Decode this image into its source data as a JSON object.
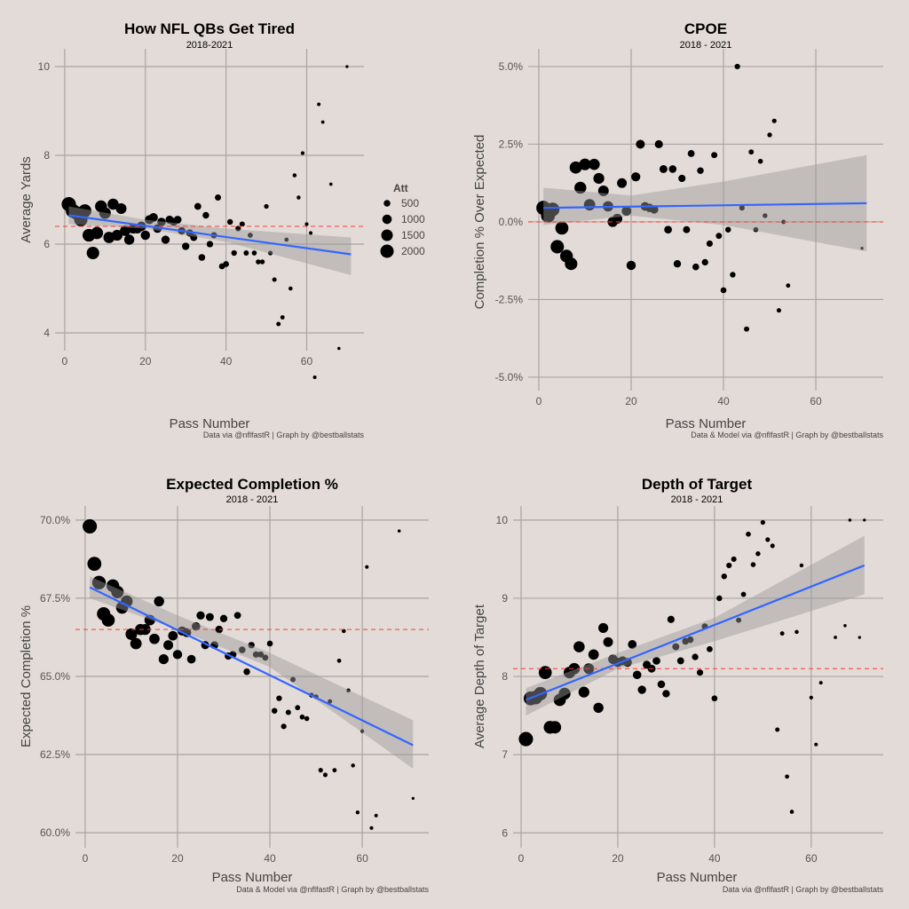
{
  "colors": {
    "background": "#e3dbd7",
    "points": "#000000",
    "trend": "#3366ff",
    "ribbon": "#999999",
    "reference": "#ff3b2f",
    "grid": "#aaa4a2"
  },
  "att_by_pass": [
    2300,
    2199,
    2101,
    2008,
    1919,
    1834,
    1753,
    1675,
    1601,
    1530,
    1462,
    1397,
    1335,
    1276,
    1220,
    1166,
    1114,
    1065,
    1017,
    972,
    929,
    888,
    849,
    811,
    775,
    741,
    708,
    677,
    647,
    618,
    591,
    564,
    539,
    515,
    493,
    471,
    450,
    430,
    411,
    393,
    375,
    359,
    343,
    328,
    313,
    299,
    286,
    273,
    261,
    250,
    239,
    228,
    218,
    208,
    199,
    190,
    182,
    174,
    166,
    159,
    152,
    145,
    139,
    133,
    127,
    121,
    116,
    111,
    106,
    101,
    97
  ],
  "legend": {
    "title": "Att",
    "items": [
      {
        "label": "500",
        "value": 500
      },
      {
        "label": "1000",
        "value": 1000
      },
      {
        "label": "1500",
        "value": 1500
      },
      {
        "label": "2000",
        "value": 2000
      }
    ]
  },
  "chart_data": [
    {
      "type": "scatter",
      "title": "How NFL QBs Get Tired",
      "subtitle": "2018-2021",
      "xlabel": "Pass Number",
      "ylabel": "Average Yards",
      "caption": "Data via @nflfastR | Graph by @bestballstats",
      "xlim": [
        -2.4,
        74.2
      ],
      "ylim": [
        3.6,
        10.4
      ],
      "xticks": [
        {
          "v": 0,
          "label": "0"
        },
        {
          "v": 20,
          "label": "20"
        },
        {
          "v": 40,
          "label": "40"
        },
        {
          "v": 60,
          "label": "60"
        }
      ],
      "yticks": [
        {
          "v": 4,
          "label": "4"
        },
        {
          "v": 6,
          "label": "6"
        },
        {
          "v": 8,
          "label": "8"
        },
        {
          "v": 10,
          "label": "10"
        }
      ],
      "reference_y": 6.4,
      "trend": [
        [
          1,
          6.65
        ],
        [
          71,
          5.77
        ]
      ],
      "ribbon": {
        "x": [
          1,
          20,
          40,
          71
        ],
        "lower": [
          6.45,
          6.35,
          6.05,
          5.3
        ],
        "upper": [
          6.85,
          6.55,
          6.35,
          6.15
        ]
      },
      "points": [
        [
          1,
          6.9
        ],
        [
          2,
          6.75
        ],
        [
          3,
          6.7
        ],
        [
          4,
          6.55
        ],
        [
          5,
          6.75
        ],
        [
          6,
          6.2
        ],
        [
          7,
          5.8
        ],
        [
          8,
          6.25
        ],
        [
          9,
          6.85
        ],
        [
          10,
          6.7
        ],
        [
          11,
          6.15
        ],
        [
          12,
          6.9
        ],
        [
          13,
          6.2
        ],
        [
          14,
          6.8
        ],
        [
          15,
          6.3
        ],
        [
          16,
          6.1
        ],
        [
          17,
          6.35
        ],
        [
          18,
          6.35
        ],
        [
          19,
          6.4
        ],
        [
          20,
          6.2
        ],
        [
          21,
          6.55
        ],
        [
          22,
          6.6
        ],
        [
          23,
          6.35
        ],
        [
          24,
          6.5
        ],
        [
          25,
          6.1
        ],
        [
          26,
          6.55
        ],
        [
          27,
          6.5
        ],
        [
          28,
          6.55
        ],
        [
          29,
          6.3
        ],
        [
          30,
          5.95
        ],
        [
          31,
          6.25
        ],
        [
          32,
          6.15
        ],
        [
          33,
          6.85
        ],
        [
          34,
          5.7
        ],
        [
          35,
          6.65
        ],
        [
          36,
          6.0
        ],
        [
          37,
          6.2
        ],
        [
          38,
          7.05
        ],
        [
          39,
          5.5
        ],
        [
          40,
          5.55
        ],
        [
          41,
          6.5
        ],
        [
          42,
          5.8
        ],
        [
          43,
          6.35
        ],
        [
          44,
          6.45
        ],
        [
          45,
          5.8
        ],
        [
          46,
          6.2
        ],
        [
          47,
          5.8
        ],
        [
          48,
          5.6
        ],
        [
          49,
          5.6
        ],
        [
          50,
          6.85
        ],
        [
          51,
          5.8
        ],
        [
          52,
          5.2
        ],
        [
          53,
          4.2
        ],
        [
          54,
          4.35
        ],
        [
          55,
          6.1
        ],
        [
          56,
          5.0
        ],
        [
          57,
          7.55
        ],
        [
          58,
          7.05
        ],
        [
          59,
          8.05
        ],
        [
          60,
          6.45
        ],
        [
          61,
          6.25
        ],
        [
          62,
          3.0
        ],
        [
          63,
          9.15
        ],
        [
          64,
          8.75
        ],
        [
          66,
          7.35
        ],
        [
          68,
          3.65
        ],
        [
          70,
          10.0
        ]
      ]
    },
    {
      "type": "scatter",
      "title": "CPOE",
      "subtitle": "2018 - 2021",
      "xlabel": "Pass Number",
      "ylabel": "Completion % Over Expected",
      "caption": "Data & Model via @nflfastR | Graph by @bestballstats",
      "xlim": [
        -2.3,
        74.6
      ],
      "ylim": [
        -5.43,
        5.57
      ],
      "xticks": [
        {
          "v": 0,
          "label": "0"
        },
        {
          "v": 20,
          "label": "20"
        },
        {
          "v": 40,
          "label": "40"
        },
        {
          "v": 60,
          "label": "60"
        }
      ],
      "yticks": [
        {
          "v": -5,
          "label": "-5.0%"
        },
        {
          "v": -2.5,
          "label": "-2.5%"
        },
        {
          "v": 0,
          "label": "0.0%"
        },
        {
          "v": 2.5,
          "label": "2.5%"
        },
        {
          "v": 5,
          "label": "5.0%"
        }
      ],
      "reference_y": 0,
      "trend": [
        [
          1,
          0.45
        ],
        [
          71,
          0.6
        ]
      ],
      "ribbon": {
        "x": [
          1,
          20,
          40,
          71
        ],
        "lower": [
          -0.1,
          0.2,
          -0.1,
          -0.95
        ],
        "upper": [
          1.1,
          0.85,
          1.3,
          2.15
        ]
      },
      "points": [
        [
          1,
          0.45
        ],
        [
          2,
          0.2
        ],
        [
          3,
          0.4
        ],
        [
          4,
          -0.8
        ],
        [
          5,
          -0.2
        ],
        [
          6,
          -1.1
        ],
        [
          7,
          -1.35
        ],
        [
          8,
          1.75
        ],
        [
          9,
          1.1
        ],
        [
          10,
          1.85
        ],
        [
          11,
          0.55
        ],
        [
          12,
          1.85
        ],
        [
          13,
          1.4
        ],
        [
          14,
          1.0
        ],
        [
          15,
          0.5
        ],
        [
          16,
          0.0
        ],
        [
          17,
          0.1
        ],
        [
          18,
          1.25
        ],
        [
          19,
          0.35
        ],
        [
          20,
          -1.4
        ],
        [
          21,
          1.45
        ],
        [
          22,
          2.5
        ],
        [
          23,
          0.5
        ],
        [
          24,
          0.45
        ],
        [
          25,
          0.4
        ],
        [
          26,
          2.5
        ],
        [
          27,
          1.7
        ],
        [
          28,
          -0.25
        ],
        [
          29,
          1.7
        ],
        [
          30,
          -1.35
        ],
        [
          31,
          1.4
        ],
        [
          32,
          -0.25
        ],
        [
          33,
          2.2
        ],
        [
          34,
          -1.45
        ],
        [
          35,
          1.65
        ],
        [
          36,
          -1.3
        ],
        [
          37,
          -0.7
        ],
        [
          38,
          2.15
        ],
        [
          39,
          -0.45
        ],
        [
          40,
          -2.2
        ],
        [
          41,
          -0.25
        ],
        [
          42,
          -1.7
        ],
        [
          43,
          5.0
        ],
        [
          44,
          0.45
        ],
        [
          45,
          -3.45
        ],
        [
          46,
          2.25
        ],
        [
          47,
          -0.25
        ],
        [
          48,
          1.95
        ],
        [
          49,
          0.2
        ],
        [
          50,
          2.8
        ],
        [
          51,
          3.25
        ],
        [
          52,
          -2.85
        ],
        [
          53,
          0.0
        ],
        [
          54,
          -2.05
        ],
        [
          70,
          -0.85
        ]
      ]
    },
    {
      "type": "scatter",
      "title": "Expected Completion %",
      "subtitle": "2018 - 2021",
      "xlabel": "Pass Number",
      "ylabel": "Expected Completion %",
      "caption": "Data & Model via @nflfastR | Graph by @bestballstats",
      "xlim": [
        -2.1,
        74.4
      ],
      "ylim": [
        59.52,
        70.45
      ],
      "xticks": [
        {
          "v": 0,
          "label": "0"
        },
        {
          "v": 20,
          "label": "20"
        },
        {
          "v": 40,
          "label": "40"
        },
        {
          "v": 60,
          "label": "60"
        }
      ],
      "yticks": [
        {
          "v": 60,
          "label": "60.0%"
        },
        {
          "v": 62.5,
          "label": "62.5%"
        },
        {
          "v": 65,
          "label": "65.0%"
        },
        {
          "v": 67.5,
          "label": "67.5%"
        },
        {
          "v": 70,
          "label": "70.0%"
        }
      ],
      "reference_y": 66.5,
      "trend": [
        [
          1,
          67.85
        ],
        [
          71,
          62.8
        ]
      ],
      "ribbon": {
        "x": [
          1,
          20,
          40,
          71
        ],
        "lower": [
          67.5,
          66.5,
          65.3,
          62.05
        ],
        "upper": [
          68.2,
          66.95,
          65.75,
          63.6
        ]
      },
      "points": [
        [
          1,
          69.8
        ],
        [
          2,
          68.6
        ],
        [
          3,
          68.0
        ],
        [
          4,
          67.0
        ],
        [
          5,
          66.8
        ],
        [
          6,
          67.9
        ],
        [
          7,
          67.7
        ],
        [
          8,
          67.2
        ],
        [
          9,
          67.4
        ],
        [
          10,
          66.35
        ],
        [
          11,
          66.05
        ],
        [
          12,
          66.5
        ],
        [
          13,
          66.5
        ],
        [
          14,
          66.8
        ],
        [
          15,
          66.2
        ],
        [
          16,
          67.4
        ],
        [
          17,
          65.55
        ],
        [
          18,
          66.0
        ],
        [
          19,
          66.3
        ],
        [
          20,
          65.7
        ],
        [
          21,
          66.45
        ],
        [
          22,
          66.4
        ],
        [
          23,
          65.55
        ],
        [
          24,
          66.6
        ],
        [
          25,
          66.95
        ],
        [
          26,
          66.0
        ],
        [
          27,
          66.9
        ],
        [
          28,
          66.0
        ],
        [
          29,
          66.5
        ],
        [
          30,
          66.85
        ],
        [
          31,
          65.65
        ],
        [
          32,
          65.7
        ],
        [
          33,
          66.95
        ],
        [
          34,
          65.85
        ],
        [
          35,
          65.15
        ],
        [
          36,
          66.0
        ],
        [
          37,
          65.7
        ],
        [
          38,
          65.7
        ],
        [
          39,
          65.6
        ],
        [
          40,
          66.05
        ],
        [
          41,
          63.9
        ],
        [
          42,
          64.3
        ],
        [
          43,
          63.4
        ],
        [
          44,
          63.85
        ],
        [
          45,
          64.9
        ],
        [
          46,
          64.0
        ],
        [
          47,
          63.7
        ],
        [
          48,
          63.65
        ],
        [
          49,
          64.4
        ],
        [
          50,
          64.35
        ],
        [
          51,
          62.0
        ],
        [
          52,
          61.85
        ],
        [
          53,
          64.2
        ],
        [
          54,
          62.0
        ],
        [
          55,
          65.5
        ],
        [
          56,
          66.45
        ],
        [
          57,
          64.55
        ],
        [
          58,
          62.15
        ],
        [
          59,
          60.65
        ],
        [
          60,
          63.25
        ],
        [
          61,
          68.5
        ],
        [
          62,
          60.15
        ],
        [
          63,
          60.55
        ],
        [
          68,
          69.65
        ],
        [
          71,
          61.1
        ]
      ]
    },
    {
      "type": "scatter",
      "title": "Depth of Target",
      "subtitle": "2018 - 2021",
      "xlabel": "Pass Number",
      "ylabel": "Average Depth of Target",
      "caption": "Data via @nflfastR | Graph by @bestballstats",
      "xlim": [
        -1.65,
        74.9
      ],
      "ylim": [
        5.81,
        10.18
      ],
      "xticks": [
        {
          "v": 0,
          "label": "0"
        },
        {
          "v": 20,
          "label": "20"
        },
        {
          "v": 40,
          "label": "40"
        },
        {
          "v": 60,
          "label": "60"
        }
      ],
      "yticks": [
        {
          "v": 6,
          "label": "6"
        },
        {
          "v": 7,
          "label": "7"
        },
        {
          "v": 8,
          "label": "8"
        },
        {
          "v": 9,
          "label": "9"
        },
        {
          "v": 10,
          "label": "10"
        }
      ],
      "reference_y": 8.1,
      "trend": [
        [
          1,
          7.7
        ],
        [
          71,
          9.42
        ]
      ],
      "ribbon": {
        "x": [
          1,
          20,
          40,
          71
        ],
        "lower": [
          7.5,
          8.1,
          8.45,
          9.05
        ],
        "upper": [
          7.85,
          8.3,
          8.75,
          9.8
        ]
      },
      "points": [
        [
          1,
          7.2
        ],
        [
          2,
          7.72
        ],
        [
          3,
          7.73
        ],
        [
          4,
          7.78
        ],
        [
          5,
          8.05
        ],
        [
          6,
          7.35
        ],
        [
          7,
          7.35
        ],
        [
          8,
          7.7
        ],
        [
          9,
          7.78
        ],
        [
          10,
          8.05
        ],
        [
          11,
          8.1
        ],
        [
          12,
          8.38
        ],
        [
          13,
          7.8
        ],
        [
          14,
          8.1
        ],
        [
          15,
          8.28
        ],
        [
          16,
          7.6
        ],
        [
          17,
          8.62
        ],
        [
          18,
          8.44
        ],
        [
          19,
          8.22
        ],
        [
          20,
          8.18
        ],
        [
          21,
          8.2
        ],
        [
          22,
          8.18
        ],
        [
          23,
          8.41
        ],
        [
          24,
          8.02
        ],
        [
          25,
          7.83
        ],
        [
          26,
          8.15
        ],
        [
          27,
          8.1
        ],
        [
          28,
          8.2
        ],
        [
          29,
          7.9
        ],
        [
          30,
          7.78
        ],
        [
          31,
          8.73
        ],
        [
          32,
          8.38
        ],
        [
          33,
          8.2
        ],
        [
          34,
          8.45
        ],
        [
          35,
          8.47
        ],
        [
          36,
          8.25
        ],
        [
          37,
          8.05
        ],
        [
          38,
          8.64
        ],
        [
          39,
          8.35
        ],
        [
          40,
          7.72
        ],
        [
          41,
          9.0
        ],
        [
          42,
          9.28
        ],
        [
          43,
          9.42
        ],
        [
          44,
          9.5
        ],
        [
          45,
          8.72
        ],
        [
          46,
          9.05
        ],
        [
          47,
          9.82
        ],
        [
          48,
          9.43
        ],
        [
          49,
          9.57
        ],
        [
          50,
          9.97
        ],
        [
          51,
          9.75
        ],
        [
          52,
          9.67
        ],
        [
          53,
          7.32
        ],
        [
          54,
          8.55
        ],
        [
          55,
          6.72
        ],
        [
          56,
          6.27
        ],
        [
          57,
          8.57
        ],
        [
          58,
          9.42
        ],
        [
          60,
          7.73
        ],
        [
          61,
          7.13
        ],
        [
          62,
          7.92
        ],
        [
          65,
          8.5
        ],
        [
          67,
          8.65
        ],
        [
          68,
          10.0
        ],
        [
          70,
          8.5
        ],
        [
          71,
          10.0
        ]
      ]
    }
  ]
}
